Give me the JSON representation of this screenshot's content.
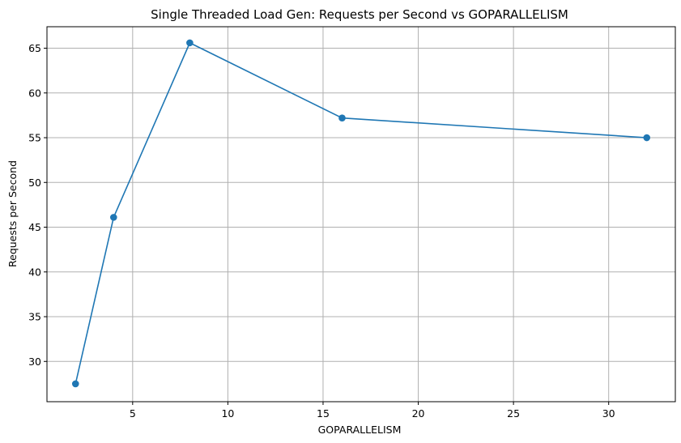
{
  "chart_data": {
    "type": "line",
    "title": "Single Threaded Load Gen: Requests per Second vs GOPARALLELISM",
    "xlabel": "GOPARALLELISM",
    "ylabel": "Requests per Second",
    "xlim": [
      0.5,
      33.5
    ],
    "ylim": [
      25.5,
      67.4
    ],
    "xticks": [
      5,
      10,
      15,
      20,
      25,
      30
    ],
    "yticks": [
      30,
      35,
      40,
      45,
      50,
      55,
      60,
      65
    ],
    "grid": true,
    "series": [
      {
        "color": "#1f77b4",
        "marker": "circle",
        "x": [
          2,
          4,
          8,
          16,
          32
        ],
        "y": [
          27.5,
          46.1,
          65.6,
          57.2,
          55.0
        ]
      }
    ]
  }
}
